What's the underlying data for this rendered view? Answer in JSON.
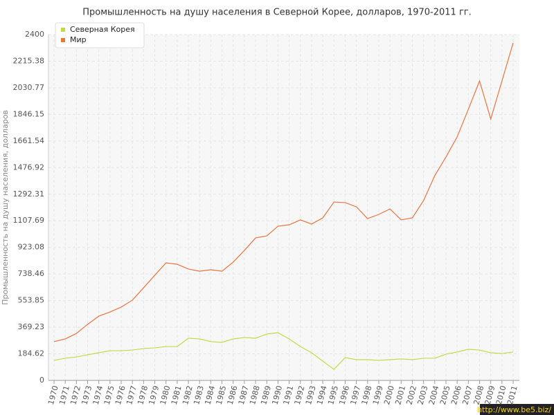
{
  "chart_data": {
    "type": "line",
    "title": "Промышленность на душу населения в Северной Корее, долларов, 1970-2011 гг.",
    "y_label": "Промышленность на душу населения, долларов",
    "watermark": "http://www.be5.biz/",
    "categories": [
      "1970",
      "1971",
      "1972",
      "1973",
      "1974",
      "1975",
      "1976",
      "1977",
      "1978",
      "1979",
      "1980",
      "1981",
      "1982",
      "1983",
      "1984",
      "1985",
      "1986",
      "1987",
      "1988",
      "1989",
      "1990",
      "1991",
      "1992",
      "1993",
      "1994",
      "1995",
      "1996",
      "1997",
      "1998",
      "1999",
      "2000",
      "2001",
      "2002",
      "2003",
      "2004",
      "2005",
      "2006",
      "2007",
      "2008",
      "2009",
      "2010",
      "2011"
    ],
    "series": [
      {
        "name": "Северная Корея",
        "color": "#c3d84a",
        "values": [
          139,
          154,
          163,
          178,
          192,
          206,
          206,
          211,
          221,
          226,
          235,
          235,
          293,
          288,
          269,
          264,
          288,
          298,
          293,
          322,
          331,
          288,
          235,
          192,
          134,
          77,
          158,
          144,
          144,
          139,
          144,
          149,
          144,
          154,
          154,
          182,
          197,
          216,
          211,
          192,
          187,
          197
        ]
      },
      {
        "name": "Мир",
        "color": "#e8743f",
        "values": [
          269,
          288,
          326,
          389,
          446,
          475,
          509,
          557,
          643,
          730,
          816,
          806,
          773,
          758,
          768,
          758,
          821,
          902,
          989,
          1003,
          1070,
          1080,
          1114,
          1085,
          1128,
          1238,
          1234,
          1205,
          1123,
          1152,
          1190,
          1114,
          1128,
          1248,
          1421,
          1550,
          1690,
          1882,
          2078,
          1814,
          2078,
          2342
        ]
      }
    ],
    "ylim": [
      0,
      2400
    ],
    "yticks": [
      0,
      184.62,
      369.23,
      553.85,
      738.46,
      923.08,
      1107.69,
      1292.31,
      1476.92,
      1661.54,
      1846.15,
      2030.77,
      2215.38,
      2400
    ],
    "grid": true,
    "legend": "top-left"
  }
}
